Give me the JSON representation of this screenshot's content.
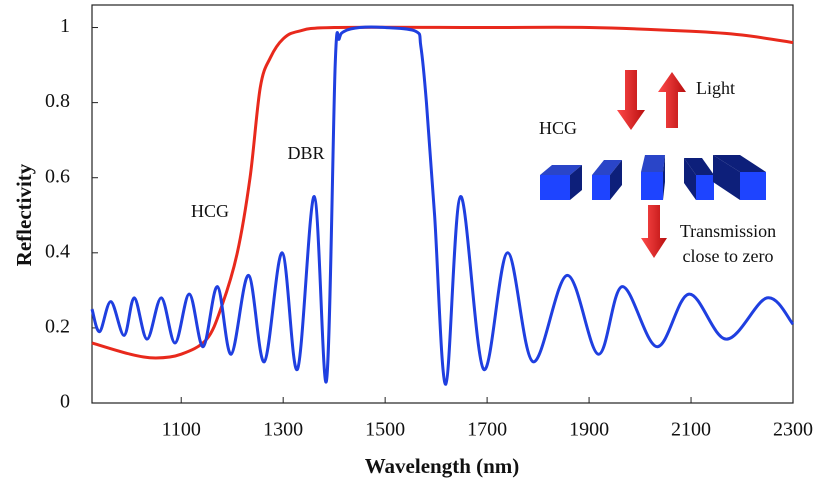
{
  "chart_data": {
    "type": "line",
    "x_label": "Wavelength (nm)",
    "y_label": "Reflectivity",
    "xlim": [
      925,
      2300
    ],
    "ylim": [
      0,
      1.06
    ],
    "xticks": [
      1100,
      1300,
      1500,
      1700,
      1900,
      2100,
      2300
    ],
    "yticks": [
      0,
      0.2,
      0.4,
      0.6,
      0.8,
      1
    ],
    "series": [
      {
        "name": "HCG",
        "color": "#e8291c",
        "x": [
          925,
          1000,
          1050,
          1100,
          1150,
          1180,
          1210,
          1235,
          1255,
          1275,
          1300,
          1330,
          1400,
          1700,
          1900,
          2100,
          2200,
          2300
        ],
        "values": [
          0.16,
          0.13,
          0.12,
          0.13,
          0.17,
          0.26,
          0.4,
          0.6,
          0.84,
          0.92,
          0.97,
          0.99,
          1.0,
          1.0,
          1.0,
          0.99,
          0.98,
          0.96
        ]
      },
      {
        "name": "DBR",
        "color": "#1f3fe0",
        "x": [
          925,
          940,
          962,
          988,
          1008,
          1033,
          1061,
          1088,
          1116,
          1143,
          1171,
          1198,
          1232,
          1263,
          1298,
          1328,
          1361,
          1385,
          1402,
          1410,
          1420,
          1450,
          1500,
          1560,
          1570,
          1581,
          1597,
          1619,
          1648,
          1693,
          1740,
          1790,
          1857,
          1918,
          1965,
          2033,
          2096,
          2169,
          2249,
          2300
        ],
        "values": [
          0.25,
          0.19,
          0.27,
          0.18,
          0.28,
          0.17,
          0.28,
          0.16,
          0.29,
          0.15,
          0.31,
          0.13,
          0.34,
          0.11,
          0.4,
          0.09,
          0.55,
          0.06,
          0.9,
          0.97,
          0.99,
          1.0,
          1.0,
          0.99,
          0.95,
          0.8,
          0.5,
          0.05,
          0.55,
          0.09,
          0.4,
          0.11,
          0.34,
          0.13,
          0.31,
          0.15,
          0.29,
          0.17,
          0.28,
          0.21
        ]
      }
    ],
    "annotations": [
      {
        "text": "HCG"
      },
      {
        "text": "DBR"
      },
      {
        "text": "Light"
      },
      {
        "text": "HCG"
      },
      {
        "text": "Transmission"
      },
      {
        "text": "close to zero"
      }
    ]
  }
}
